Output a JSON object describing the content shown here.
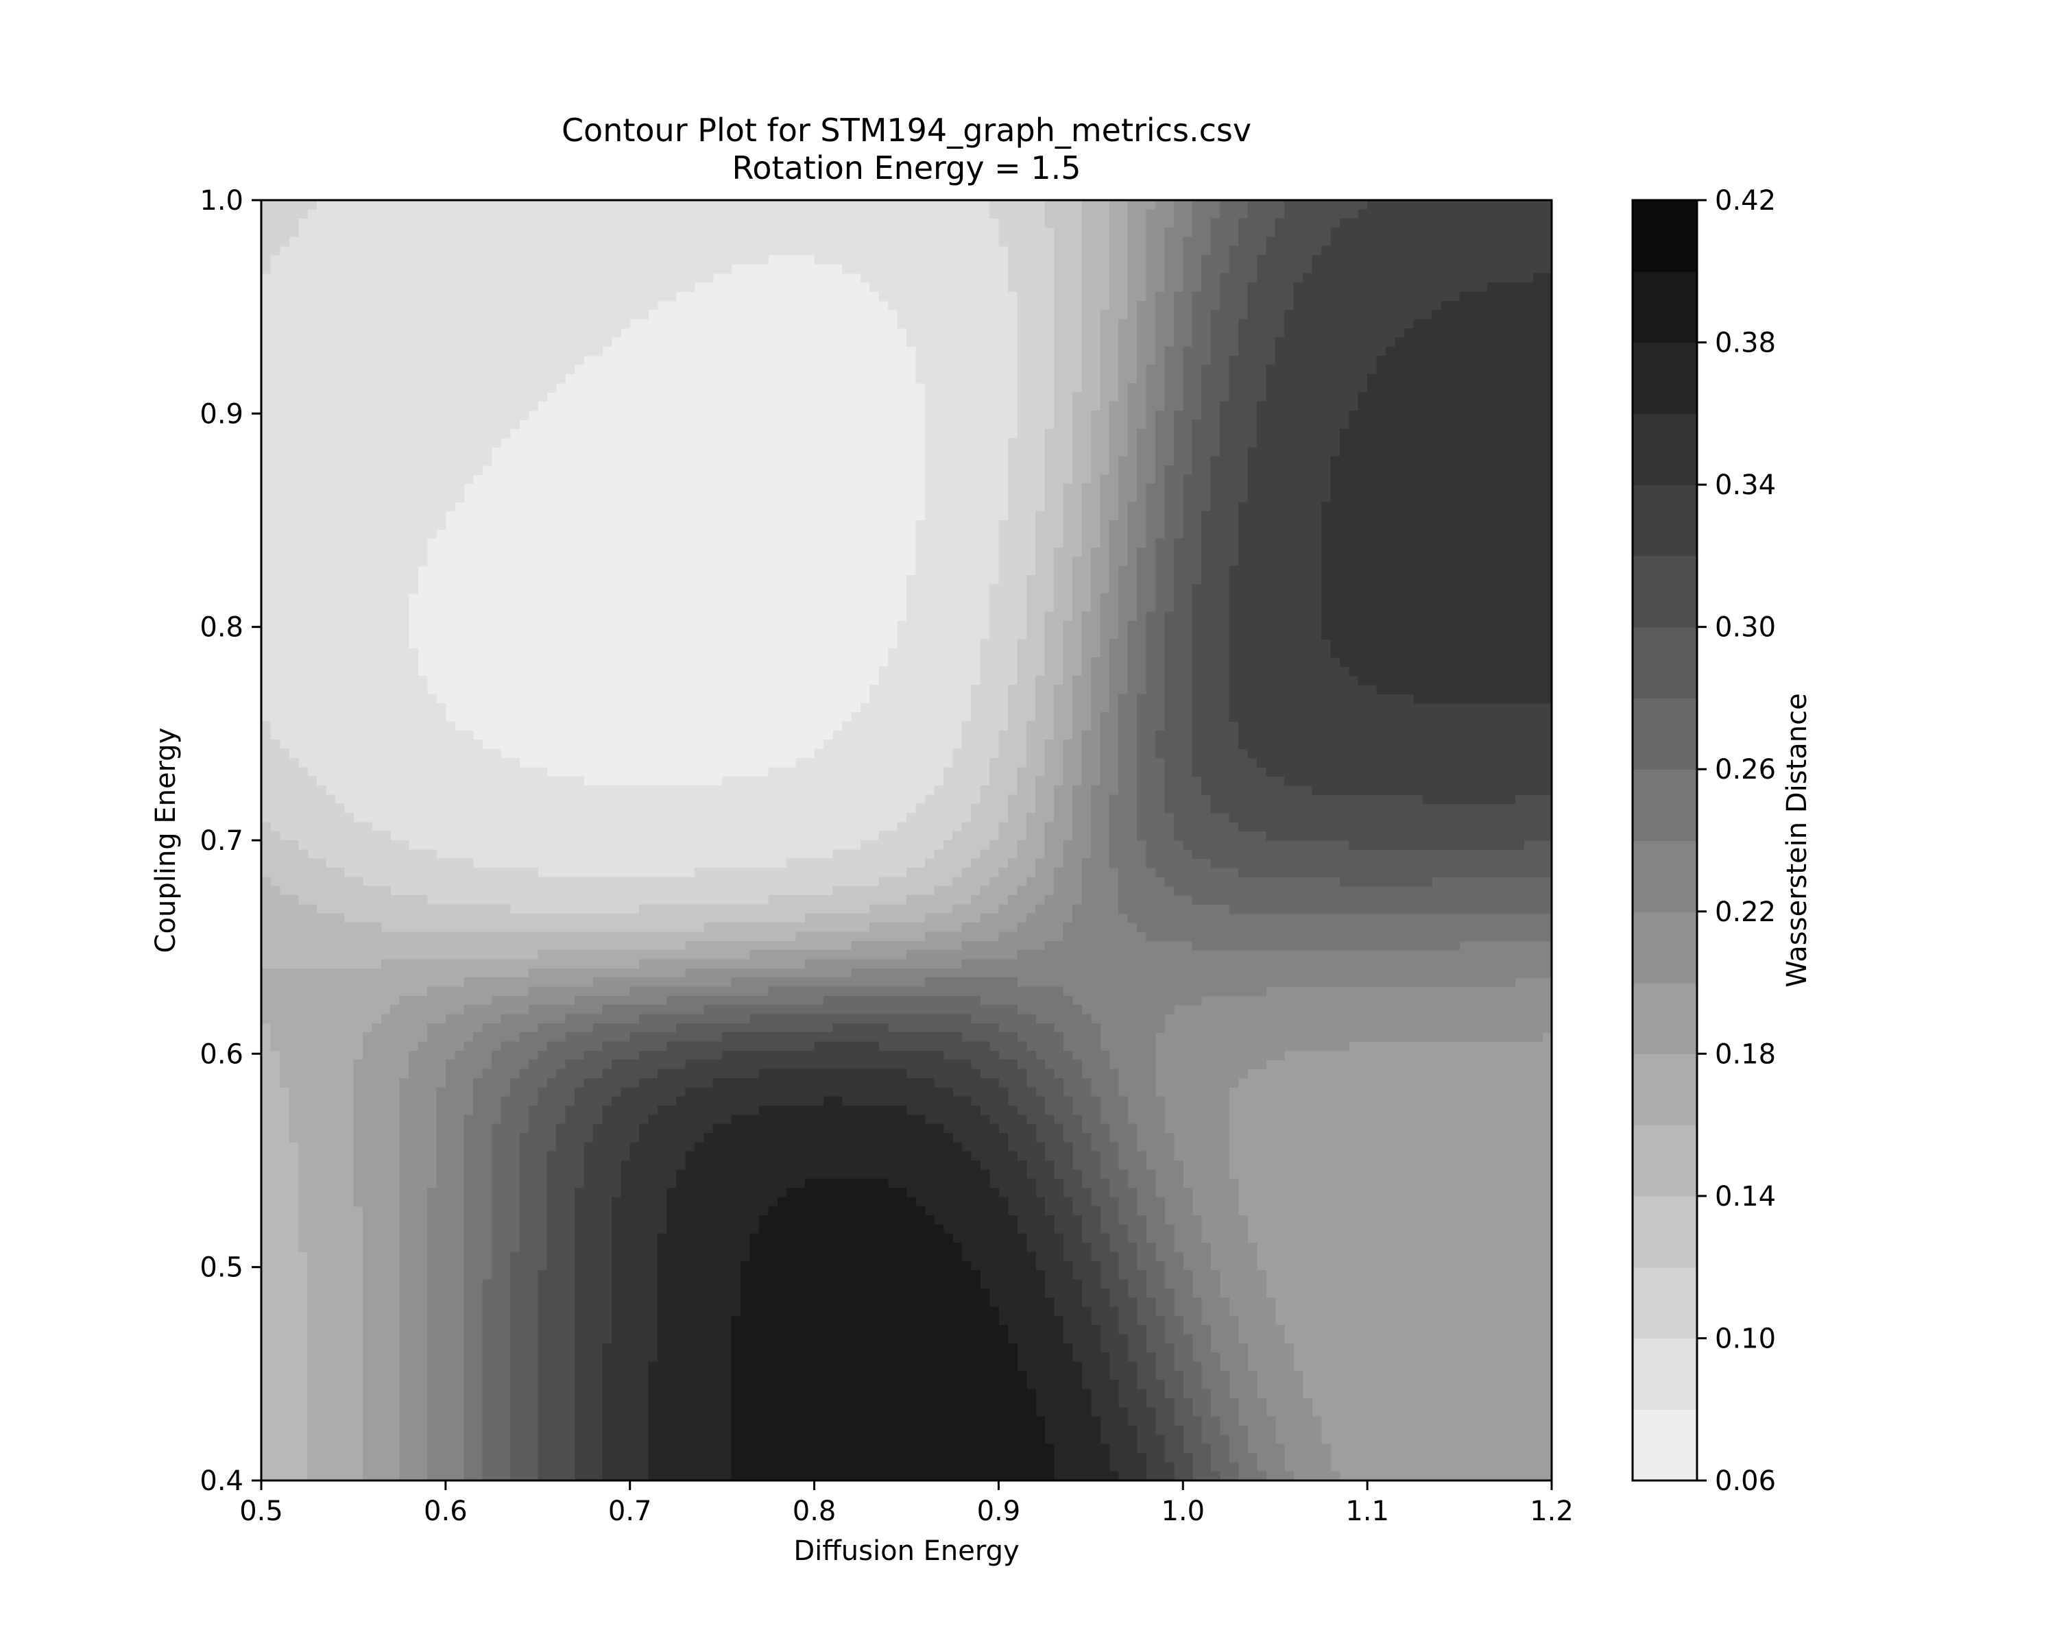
{
  "chart_data": {
    "type": "heatmap",
    "subtype": "filled-contour",
    "title": "Contour Plot for STM194_graph_metrics.csv",
    "subtitle": "Rotation Energy = 1.5",
    "xlabel": "Diffusion Energy",
    "ylabel": "Coupling Energy",
    "xlim": [
      0.5,
      1.2
    ],
    "ylim": [
      0.4,
      1.0
    ],
    "x_ticks": [
      "0.5",
      "0.6",
      "0.7",
      "0.8",
      "0.9",
      "1.0",
      "1.1",
      "1.2"
    ],
    "y_ticks": [
      "0.4",
      "0.5",
      "0.6",
      "0.7",
      "0.8",
      "0.9",
      "1.0"
    ],
    "colormap": "Greys",
    "colorbar": {
      "label": "Wasserstein Distance",
      "range": [
        0.06,
        0.42
      ],
      "level_step": 0.02,
      "tick_labels": [
        "0.06",
        "0.10",
        "0.14",
        "0.18",
        "0.22",
        "0.26",
        "0.30",
        "0.34",
        "0.38",
        "0.42"
      ],
      "color_light": "#ffffff",
      "color_dark": "#000000"
    },
    "grid": false,
    "features": [
      {
        "kind": "min",
        "x": 0.72,
        "y": 0.86,
        "value": 0.07
      },
      {
        "kind": "max",
        "x": 0.76,
        "y": 0.4,
        "value": 0.4
      },
      {
        "kind": "max",
        "x": 1.21,
        "y": 0.81,
        "value": 0.35
      },
      {
        "kind": "min",
        "x": 0.49,
        "y": 0.4,
        "value": 0.13
      },
      {
        "kind": "min",
        "x": 1.22,
        "y": 0.53,
        "value": 0.18
      },
      {
        "kind": "min",
        "x": 0.52,
        "y": 1.02,
        "value": 0.1
      }
    ]
  }
}
